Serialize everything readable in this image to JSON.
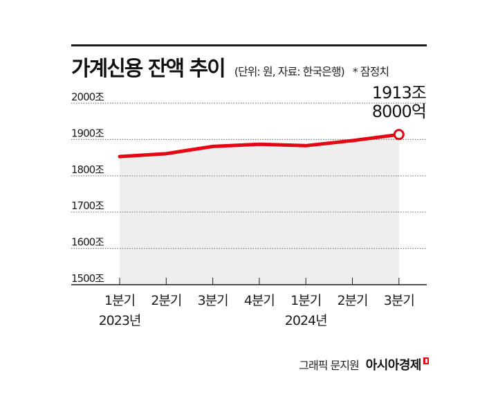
{
  "header": {
    "title": "가계신용 잔액 추이",
    "subtitle": "(단위: 원, 자료: 한국은행)",
    "note": "* 잠정치"
  },
  "credit": {
    "text": "그래픽 문지원",
    "brand": "아시아경제"
  },
  "colors": {
    "line": "#e30613",
    "area": "#eeeeee",
    "text": "#1a1a1a"
  },
  "chart_data": {
    "type": "line",
    "title": "가계신용 잔액 추이",
    "subtitle": "(단위: 원, 자료: 한국은행)",
    "annotation_note": "* 잠정치",
    "categories": [
      "2023 1분기",
      "2023 2분기",
      "2023 3분기",
      "2023 4분기",
      "2024 1분기",
      "2024 2분기",
      "2024 3분기"
    ],
    "x_tick_labels": [
      "1분기",
      "2분기",
      "3분기",
      "4분기",
      "1분기",
      "2분기",
      "3분기"
    ],
    "x_group_labels": [
      {
        "label": "2023년",
        "index": 0
      },
      {
        "label": "2024년",
        "index": 4
      }
    ],
    "series": [
      {
        "name": "가계신용 잔액",
        "unit": "조 원",
        "values": [
          1853,
          1861,
          1881,
          1887,
          1883,
          1897,
          1913.8
        ]
      }
    ],
    "y_ticks": [
      1500,
      1600,
      1700,
      1800,
      1900,
      2000
    ],
    "y_tick_labels": [
      "1500조",
      "1600조",
      "1700조",
      "1800조",
      "1900조",
      "2000조"
    ],
    "ylim": [
      1500,
      2000
    ],
    "xlabel": "",
    "ylabel": "",
    "grid": "horizontal dotted",
    "legend": "none",
    "last_point_label": [
      "1913조",
      "8000억"
    ]
  }
}
